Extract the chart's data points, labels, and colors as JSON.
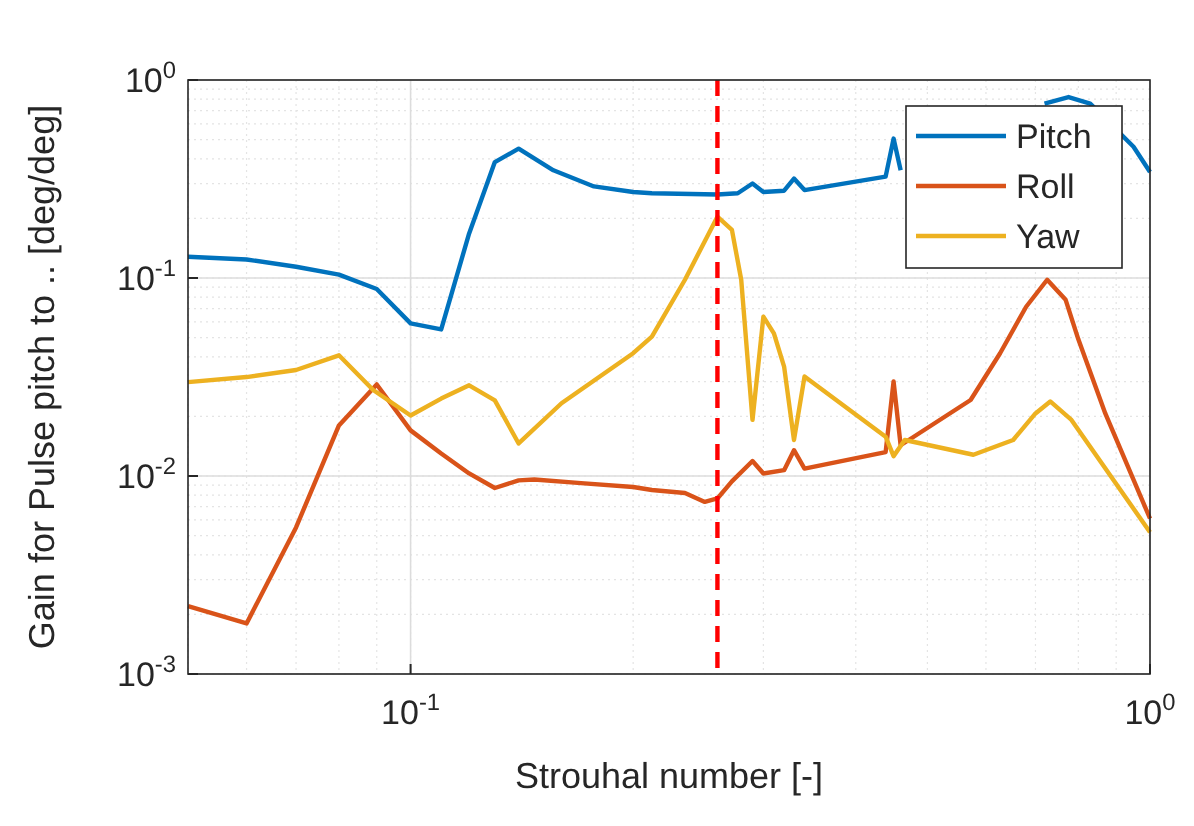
{
  "chart_data": {
    "type": "line",
    "xlabel": "Strouhal number [-]",
    "ylabel": "Gain for Pulse pitch to .. [deg/deg]",
    "log": "xy",
    "xlim": [
      0.05,
      1
    ],
    "ylim": [
      0.001,
      1
    ],
    "xticks": [
      {
        "value": 0.1,
        "label": "10$^{-1}$"
      },
      {
        "value": 1,
        "label": "10$^{0}$"
      }
    ],
    "yticks": [
      {
        "value": 0.001,
        "label": "10$^{-3}$"
      },
      {
        "value": 0.01,
        "label": "10$^{-2}$"
      },
      {
        "value": 0.1,
        "label": "10$^{-1}$"
      },
      {
        "value": 1,
        "label": "10$^{0}$"
      }
    ],
    "grid": true,
    "legend": "top right",
    "line_style": "solid",
    "series": [
      {
        "name": "Pitch",
        "color": "#0072bd",
        "x": [
          0.05,
          0.06,
          0.07,
          0.08,
          0.09,
          0.1,
          0.11,
          0.12,
          0.13,
          0.14,
          0.156,
          0.177,
          0.2,
          0.212,
          0.26,
          0.277,
          0.29,
          0.3,
          0.32,
          0.33,
          0.341,
          0.439,
          0.45,
          0.46,
          0.6,
          0.72,
          0.776,
          0.83,
          0.95,
          1.0
        ],
        "values": [
          0.128,
          0.124,
          0.114,
          0.104,
          0.088,
          0.059,
          0.055,
          0.168,
          0.385,
          0.45,
          0.35,
          0.29,
          0.272,
          0.268,
          0.264,
          0.268,
          0.3,
          0.272,
          0.276,
          0.318,
          0.278,
          0.325,
          0.506,
          0.35,
          null,
          0.76,
          0.82,
          0.76,
          0.46,
          0.343
        ]
      },
      {
        "name": "Roll",
        "color": "#d95319",
        "x": [
          0.05,
          0.06,
          0.07,
          0.08,
          0.09,
          0.1,
          0.11,
          0.12,
          0.13,
          0.14,
          0.147,
          0.17,
          0.2,
          0.212,
          0.235,
          0.25,
          0.26,
          0.272,
          0.29,
          0.3,
          0.32,
          0.33,
          0.341,
          0.439,
          0.45,
          0.46,
          0.572,
          0.627,
          0.68,
          0.726,
          0.769,
          0.8,
          0.87,
          1.0
        ],
        "values": [
          0.0022,
          0.0018,
          0.0055,
          0.018,
          0.029,
          0.017,
          0.013,
          0.0103,
          0.0087,
          0.0095,
          0.0096,
          0.0092,
          0.0088,
          0.0085,
          0.0082,
          0.0074,
          0.0077,
          0.0094,
          0.0119,
          0.0103,
          0.0107,
          0.0135,
          0.0109,
          0.0132,
          0.03,
          0.0143,
          0.0242,
          0.0417,
          0.0716,
          0.098,
          0.0776,
          0.049,
          0.0207,
          0.0061
        ]
      },
      {
        "name": "Yaw",
        "color": "#edb120",
        "x": [
          0.05,
          0.06,
          0.07,
          0.08,
          0.089,
          0.1,
          0.11,
          0.12,
          0.13,
          0.14,
          0.16,
          0.2,
          0.212,
          0.235,
          0.26,
          0.272,
          0.28,
          0.29,
          0.3,
          0.31,
          0.32,
          0.33,
          0.341,
          0.439,
          0.45,
          0.466,
          0.577,
          0.653,
          0.7,
          0.733,
          0.783,
          1.0
        ],
        "values": [
          0.0298,
          0.0316,
          0.0343,
          0.0407,
          0.0272,
          0.0202,
          0.0246,
          0.0287,
          0.0241,
          0.0146,
          0.0233,
          0.0417,
          0.0506,
          0.098,
          0.204,
          0.175,
          0.098,
          0.0192,
          0.0638,
          0.0525,
          0.0357,
          0.0152,
          0.0318,
          0.0158,
          0.0126,
          0.0152,
          0.0128,
          0.0152,
          0.0207,
          0.0238,
          0.0192,
          0.0052
        ]
      }
    ],
    "ref_lines": [
      {
        "axis": "x",
        "value": 0.26,
        "color": "#ff0000",
        "line_style": "dashed"
      }
    ]
  }
}
